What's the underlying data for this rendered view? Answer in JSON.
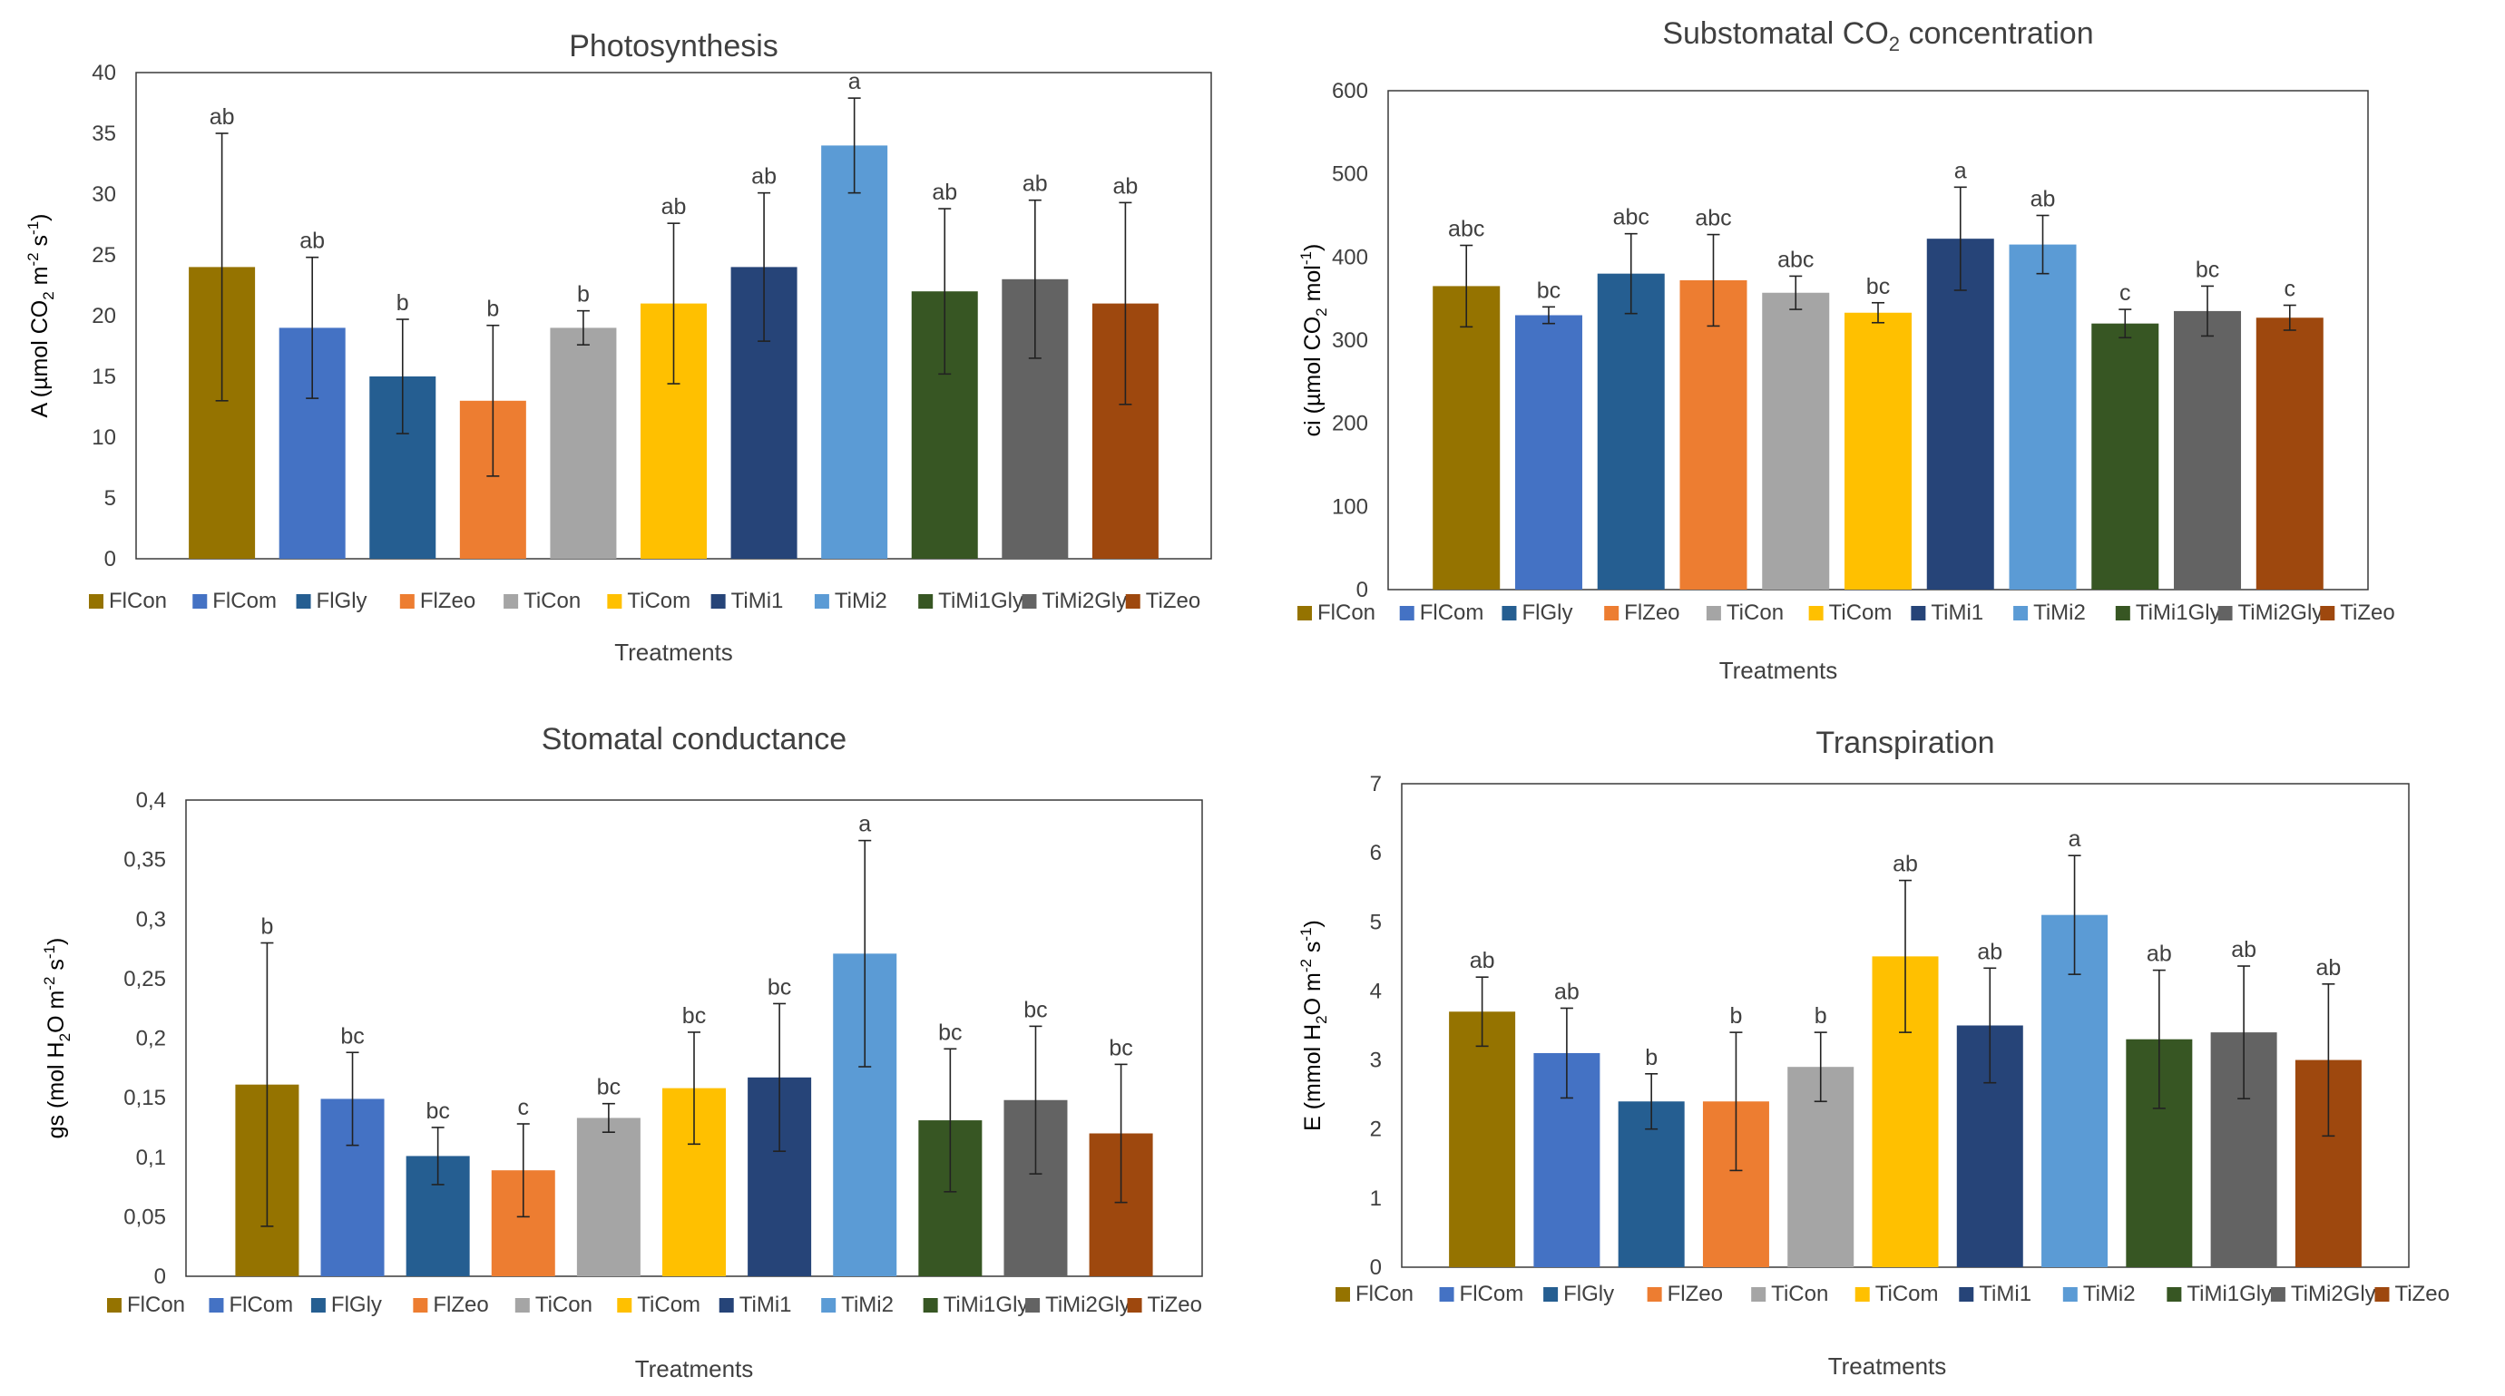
{
  "colors": {
    "FlCon": "#957300",
    "FlCom": "#4472c4",
    "FlGly": "#255e91",
    "FlZeo": "#ed7d31",
    "TiCon": "#a5a5a5",
    "TiCom": "#ffc000",
    "TiMi1": "#264478",
    "TiMi2": "#5b9bd5",
    "TiMi1Gly": "#375623",
    "TiMi2Gly": "#636363",
    "TiZeo": "#9e480e"
  },
  "chart_data": [
    {
      "type": "bar",
      "title": "Photosynthesis",
      "xlabel": "Treatments",
      "ylabel": "A (µmol CO2 m-2 s-1)",
      "ylabel_parts": {
        "pre": "A (µmol CO",
        "sub": "2",
        "mid": " m",
        "sup1": "-2",
        "mid2": " s",
        "sup2": "-1",
        "post": ")"
      },
      "ylim": [
        0,
        40
      ],
      "yticks": [
        "0",
        "5",
        "10",
        "15",
        "20",
        "25",
        "30",
        "35",
        "40"
      ],
      "categories": [
        "FlCon",
        "FlCom",
        "FlGly",
        "FlZeo",
        "TiCon",
        "TiCom",
        "TiMi1",
        "TiMi2",
        "TiMi1Gly",
        "TiMi2Gly",
        "TiZeo"
      ],
      "values": [
        24,
        19,
        15,
        13,
        19,
        21,
        24,
        34,
        22,
        23,
        21
      ],
      "errors": [
        11,
        5.8,
        4.7,
        6.2,
        1.4,
        6.6,
        6.1,
        3.9,
        6.8,
        6.5,
        8.3
      ],
      "labels": [
        "ab",
        "ab",
        "b",
        "b",
        "b",
        "ab",
        "ab",
        "a",
        "ab",
        "ab",
        "ab"
      ]
    },
    {
      "type": "bar",
      "title": "Substomatal CO2 concentration",
      "title_parts": {
        "pre": "Substomatal CO",
        "sub": "2",
        "post": " concentration"
      },
      "xlabel": "Treatments",
      "ylabel": "ci (µmol CO2 mol-1)",
      "ylabel_parts": {
        "pre": "ci (µmol CO",
        "sub": "2",
        "mid": " mol",
        "sup1": "-1",
        "post": ")"
      },
      "ylim": [
        0,
        600
      ],
      "yticks": [
        "0",
        "100",
        "200",
        "300",
        "400",
        "500",
        "600"
      ],
      "categories": [
        "FlCon",
        "FlCom",
        "FlGly",
        "FlZeo",
        "TiCon",
        "TiCom",
        "TiMi1",
        "TiMi2",
        "TiMi1Gly",
        "TiMi2Gly",
        "TiZeo"
      ],
      "values": [
        365,
        330,
        380,
        372,
        357,
        333,
        422,
        415,
        320,
        335,
        327
      ],
      "errors": [
        49,
        10,
        48,
        55,
        20,
        12,
        62,
        35,
        17,
        30,
        15
      ],
      "labels": [
        "abc",
        "bc",
        "abc",
        "abc",
        "abc",
        "bc",
        "a",
        "ab",
        "c",
        "bc",
        "c"
      ]
    },
    {
      "type": "bar",
      "title": "Stomatal conductance",
      "xlabel": "Treatments",
      "ylabel": "gs (mol H2O m-2 s-1)",
      "ylabel_parts": {
        "pre": "gs (mol H",
        "sub": "2",
        "mid": "O m",
        "sup1": "-2",
        "mid2": " s",
        "sup2": "-1",
        "post": ")"
      },
      "ylim": [
        0,
        0.4
      ],
      "yticks": [
        "0",
        "0,05",
        "0,1",
        "0,15",
        "0,2",
        "0,25",
        "0,3",
        "0,35",
        "0,4"
      ],
      "categories": [
        "FlCon",
        "FlCom",
        "FlGly",
        "FlZeo",
        "TiCon",
        "TiCom",
        "TiMi1",
        "TiMi2",
        "TiMi1Gly",
        "TiMi2Gly",
        "TiZeo"
      ],
      "values": [
        0.161,
        0.149,
        0.101,
        0.089,
        0.133,
        0.158,
        0.167,
        0.271,
        0.131,
        0.148,
        0.12
      ],
      "errors": [
        0.119,
        0.039,
        0.024,
        0.039,
        0.012,
        0.047,
        0.062,
        0.095,
        0.06,
        0.062,
        0.058
      ],
      "labels": [
        "b",
        "bc",
        "bc",
        "c",
        "bc",
        "bc",
        "bc",
        "a",
        "bc",
        "bc",
        "bc"
      ]
    },
    {
      "type": "bar",
      "title": "Transpiration",
      "xlabel": "Treatments",
      "ylabel": "E (mmol H2O m-2 s-1)",
      "ylabel_parts": {
        "pre": "E (mmol H",
        "sub": "2",
        "mid": "O m",
        "sup1": "-2",
        "mid2": " s",
        "sup2": "-1",
        "post": ")"
      },
      "ylim": [
        0,
        7
      ],
      "yticks": [
        "0",
        "1",
        "2",
        "3",
        "4",
        "5",
        "6",
        "7"
      ],
      "categories": [
        "FlCon",
        "FlCom",
        "FlGly",
        "FlZeo",
        "TiCon",
        "TiCom",
        "TiMi1",
        "TiMi2",
        "TiMi1Gly",
        "TiMi2Gly",
        "TiZeo"
      ],
      "values": [
        3.7,
        3.1,
        2.4,
        2.4,
        2.9,
        4.5,
        3.5,
        5.1,
        3.3,
        3.4,
        3.0
      ],
      "errors": [
        0.5,
        0.65,
        0.4,
        1.0,
        0.5,
        1.1,
        0.83,
        0.86,
        1.0,
        0.96,
        1.1
      ],
      "labels": [
        "ab",
        "ab",
        "b",
        "b",
        "b",
        "ab",
        "ab",
        "a",
        "ab",
        "ab",
        "ab"
      ]
    }
  ]
}
